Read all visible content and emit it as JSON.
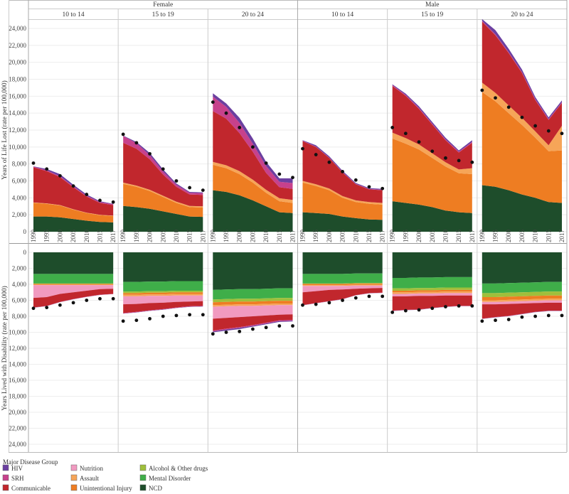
{
  "chart_data": {
    "type": "area",
    "sexes": [
      "Female",
      "Male"
    ],
    "age_groups": [
      "10 to 14",
      "15 to 19",
      "20 to 24"
    ],
    "years": [
      "1990",
      "1995",
      "2000",
      "2005",
      "2010",
      "2015",
      "2017"
    ],
    "top_ylabel": "Years of Life Lost (rate per 100,000)",
    "bottom_ylabel": "Years Lived with Disability (rate per 100,000)",
    "top_ticks": [
      "0",
      "2,000",
      "4,000",
      "6,000",
      "8,000",
      "10,000",
      "12,000",
      "14,000",
      "16,000",
      "18,000",
      "20,000",
      "22,000",
      "24,000"
    ],
    "bottom_ticks": [
      "0",
      "2,000",
      "4,000",
      "6,000",
      "8,000",
      "10,000",
      "12,000",
      "14,000",
      "16,000",
      "18,000",
      "20,000",
      "22,000",
      "24,000"
    ],
    "top_ylim": [
      0,
      25000
    ],
    "bottom_ylim": [
      0,
      25000
    ],
    "legend_title": "Major Disease Group",
    "categories": [
      {
        "key": "ncd",
        "name": "NCD",
        "color": "#1e4d2b"
      },
      {
        "key": "mental",
        "name": "Mental Disorder",
        "color": "#3fae49"
      },
      {
        "key": "alcohol",
        "name": "Alcohol & Other drugs",
        "color": "#9fbf3b"
      },
      {
        "key": "unint",
        "name": "Unintentional Injury",
        "color": "#ee7d22"
      },
      {
        "key": "assault",
        "name": "Assault",
        "color": "#f6a558"
      },
      {
        "key": "nutrition",
        "name": "Nutrition",
        "color": "#f19ac0"
      },
      {
        "key": "comm",
        "name": "Communicable",
        "color": "#c1272d"
      },
      {
        "key": "srh",
        "name": "SRH",
        "color": "#c7418c"
      },
      {
        "key": "hiv",
        "name": "HIV",
        "color": "#6b3fa0"
      }
    ],
    "legend_order": [
      "hiv",
      "srh",
      "comm",
      "nutrition",
      "assault",
      "unint",
      "alcohol",
      "mental",
      "ncd"
    ],
    "panels": [
      {
        "sex": "Female",
        "age": "10 to 14",
        "yll": {
          "ncd": [
            1800,
            1800,
            1700,
            1500,
            1300,
            1150,
            1100
          ],
          "unint": [
            1600,
            1500,
            1400,
            1100,
            900,
            800,
            750
          ],
          "assault": [
            50,
            50,
            50,
            50,
            50,
            50,
            50
          ],
          "comm": [
            4150,
            3800,
            3300,
            2600,
            1900,
            1400,
            1250
          ],
          "srh": [
            100,
            100,
            100,
            100,
            100,
            100,
            100
          ],
          "hiv": [
            20,
            150,
            250,
            200,
            150,
            100,
            50
          ]
        },
        "yll_dots": [
          8100,
          7400,
          6600,
          5400,
          4400,
          3700,
          3500
        ],
        "yld": {
          "ncd": [
            2700,
            2700,
            2700,
            2700,
            2700,
            2700,
            2700
          ],
          "mental": [
            1200,
            1200,
            1200,
            1200,
            1200,
            1200,
            1200
          ],
          "alcohol": [
            50,
            50,
            50,
            50,
            50,
            50,
            50
          ],
          "unint": [
            100,
            100,
            100,
            100,
            100,
            100,
            100
          ],
          "assault": [
            50,
            50,
            50,
            50,
            50,
            50,
            50
          ],
          "nutrition": [
            1600,
            1500,
            1100,
            900,
            700,
            500,
            450
          ],
          "comm": [
            1200,
            1100,
            1000,
            850,
            750,
            700,
            650
          ],
          "srh": [
            20,
            20,
            20,
            20,
            20,
            20,
            20
          ],
          "hiv": [
            10,
            10,
            10,
            10,
            10,
            10,
            10
          ]
        },
        "yld_dots": [
          7000,
          6900,
          6600,
          6300,
          6000,
          5800,
          5800
        ]
      },
      {
        "sex": "Female",
        "age": "15 to 19",
        "yll": {
          "ncd": [
            3050,
            2900,
            2700,
            2400,
            2100,
            1800,
            1750
          ],
          "unint": [
            2600,
            2400,
            2100,
            1700,
            1300,
            1100,
            1100
          ],
          "assault": [
            150,
            150,
            150,
            150,
            150,
            150,
            150
          ],
          "comm": [
            4700,
            4350,
            3600,
            2500,
            1750,
            1350,
            1350
          ],
          "srh": [
            800,
            650,
            500,
            350,
            250,
            200,
            200
          ],
          "hiv": [
            50,
            150,
            250,
            250,
            150,
            100,
            100
          ]
        },
        "yll_dots": [
          11500,
          10500,
          9200,
          7400,
          6000,
          5200,
          4900
        ],
        "yld": {
          "ncd": [
            3700,
            3700,
            3650,
            3650,
            3600,
            3600,
            3600
          ],
          "mental": [
            1200,
            1200,
            1200,
            1200,
            1200,
            1200,
            1200
          ],
          "alcohol": [
            200,
            200,
            200,
            200,
            200,
            200,
            200
          ],
          "unint": [
            200,
            200,
            200,
            200,
            200,
            200,
            200
          ],
          "assault": [
            200,
            200,
            200,
            200,
            200,
            200,
            200
          ],
          "nutrition": [
            1000,
            950,
            900,
            850,
            800,
            750,
            700
          ],
          "comm": [
            1100,
            1000,
            900,
            800,
            700,
            600,
            600
          ],
          "srh": [
            50,
            50,
            50,
            50,
            50,
            50,
            50
          ],
          "hiv": [
            20,
            20,
            20,
            20,
            20,
            20,
            20
          ]
        },
        "yld_dots": [
          8600,
          8500,
          8300,
          8000,
          7900,
          7800,
          7800
        ]
      },
      {
        "sex": "Female",
        "age": "20 to 24",
        "yll": {
          "ncd": [
            4900,
            4700,
            4300,
            3700,
            3000,
            2300,
            2200
          ],
          "unint": [
            3000,
            2800,
            2500,
            2100,
            1600,
            1300,
            1200
          ],
          "assault": [
            350,
            350,
            350,
            350,
            350,
            350,
            350
          ],
          "comm": [
            6000,
            5500,
            4500,
            3300,
            2000,
            1300,
            1300
          ],
          "srh": [
            1700,
            1400,
            1200,
            950,
            800,
            650,
            700
          ],
          "hiv": [
            400,
            400,
            600,
            600,
            500,
            400,
            550
          ]
        },
        "yll_dots": [
          15300,
          14000,
          12300,
          10000,
          8100,
          6800,
          6400
        ],
        "yld": {
          "ncd": [
            4700,
            4650,
            4600,
            4600,
            4550,
            4500,
            4500
          ],
          "mental": [
            1200,
            1200,
            1200,
            1200,
            1200,
            1200,
            1200
          ],
          "alcohol": [
            350,
            350,
            350,
            350,
            350,
            350,
            350
          ],
          "unint": [
            350,
            350,
            350,
            350,
            350,
            350,
            350
          ],
          "assault": [
            200,
            200,
            200,
            200,
            200,
            200,
            200
          ],
          "nutrition": [
            1500,
            1450,
            1400,
            1300,
            1250,
            1200,
            1150
          ],
          "comm": [
            1500,
            1350,
            1250,
            1100,
            900,
            700,
            700
          ],
          "srh": [
            100,
            100,
            100,
            100,
            100,
            100,
            100
          ],
          "hiv": [
            100,
            150,
            150,
            100,
            100,
            100,
            100
          ]
        },
        "yld_dots": [
          10200,
          10000,
          9900,
          9600,
          9400,
          9200,
          9200
        ]
      },
      {
        "sex": "Male",
        "age": "10 to 14",
        "yll": {
          "ncd": [
            2300,
            2200,
            2100,
            1800,
            1600,
            1450,
            1400
          ],
          "unint": [
            3500,
            3200,
            2800,
            2200,
            1900,
            1850,
            1800
          ],
          "assault": [
            200,
            200,
            200,
            200,
            200,
            200,
            200
          ],
          "comm": [
            4700,
            4400,
            3600,
            2800,
            1900,
            1500,
            1500
          ],
          "srh": [
            50,
            50,
            50,
            50,
            50,
            50,
            50
          ],
          "hiv": [
            50,
            150,
            150,
            150,
            100,
            100,
            100
          ]
        },
        "yll_dots": [
          9800,
          9100,
          8200,
          7100,
          6100,
          5300,
          5100
        ],
        "yld": {
          "ncd": [
            2700,
            2700,
            2700,
            2700,
            2650,
            2650,
            2650
          ],
          "mental": [
            1200,
            1200,
            1200,
            1200,
            1200,
            1200,
            1200
          ],
          "alcohol": [
            50,
            50,
            50,
            50,
            50,
            50,
            50
          ],
          "unint": [
            150,
            150,
            150,
            150,
            150,
            150,
            150
          ],
          "assault": [
            100,
            100,
            100,
            100,
            100,
            100,
            100
          ],
          "nutrition": [
            800,
            650,
            500,
            450,
            400,
            350,
            300
          ],
          "comm": [
            1600,
            1500,
            1400,
            1200,
            800,
            600,
            600
          ],
          "srh": [
            20,
            20,
            20,
            20,
            20,
            20,
            20
          ],
          "hiv": [
            10,
            10,
            10,
            10,
            10,
            10,
            10
          ]
        },
        "yld_dots": [
          6600,
          6500,
          6300,
          6000,
          5700,
          5500,
          5500
        ]
      },
      {
        "sex": "Male",
        "age": "15 to 19",
        "yll": {
          "ncd": [
            3600,
            3400,
            3200,
            2900,
            2500,
            2300,
            2200
          ],
          "unint": [
            7400,
            7000,
            6500,
            5800,
            5200,
            4600,
            4600
          ],
          "assault": [
            700,
            650,
            600,
            550,
            500,
            450,
            700
          ],
          "comm": [
            5500,
            5000,
            4200,
            3400,
            2600,
            2000,
            3000
          ],
          "srh": [
            100,
            100,
            100,
            100,
            100,
            100,
            100
          ],
          "hiv": [
            100,
            150,
            200,
            200,
            200,
            150,
            200
          ]
        },
        "yll_dots": [
          12300,
          11600,
          10600,
          9500,
          8700,
          8400,
          8200
        ],
        "yld": {
          "ncd": [
            3200,
            3200,
            3150,
            3150,
            3100,
            3100,
            3100
          ],
          "mental": [
            1300,
            1300,
            1300,
            1300,
            1300,
            1300,
            1300
          ],
          "alcohol": [
            300,
            300,
            300,
            300,
            300,
            300,
            300
          ],
          "unint": [
            200,
            200,
            200,
            200,
            200,
            200,
            200
          ],
          "assault": [
            200,
            200,
            200,
            200,
            200,
            200,
            200
          ],
          "nutrition": [
            300,
            300,
            300,
            300,
            300,
            300,
            300
          ],
          "comm": [
            1800,
            1700,
            1700,
            1500,
            1400,
            1300,
            1300
          ],
          "srh": [
            20,
            20,
            20,
            20,
            20,
            20,
            20
          ],
          "hiv": [
            20,
            20,
            20,
            20,
            20,
            20,
            20
          ]
        },
        "yld_dots": [
          7500,
          7300,
          7200,
          7000,
          6800,
          6700,
          6700
        ]
      },
      {
        "sex": "Male",
        "age": "20 to 24",
        "yll": {
          "ncd": [
            5500,
            5300,
            4900,
            4400,
            4000,
            3500,
            3400
          ],
          "unint": [
            11000,
            10100,
            9100,
            8200,
            7100,
            6000,
            6200
          ],
          "assault": [
            1100,
            1000,
            900,
            850,
            750,
            700,
            2900
          ],
          "comm": [
            7200,
            6800,
            6200,
            5300,
            3700,
            3000,
            2700
          ],
          "srh": [
            100,
            100,
            100,
            100,
            100,
            100,
            100
          ],
          "hiv": [
            200,
            500,
            400,
            300,
            250,
            200,
            200
          ]
        },
        "yll_dots": [
          16700,
          15800,
          14700,
          13500,
          12500,
          11900,
          11600
        ],
        "yld": {
          "ncd": [
            3900,
            3900,
            3850,
            3800,
            3750,
            3700,
            3700
          ],
          "mental": [
            1200,
            1200,
            1200,
            1200,
            1200,
            1200,
            1200
          ],
          "alcohol": [
            500,
            500,
            500,
            500,
            500,
            500,
            500
          ],
          "unint": [
            400,
            400,
            400,
            400,
            400,
            400,
            400
          ],
          "assault": [
            200,
            200,
            200,
            200,
            200,
            200,
            200
          ],
          "nutrition": [
            300,
            300,
            300,
            300,
            300,
            300,
            300
          ],
          "comm": [
            1800,
            1600,
            1500,
            1300,
            1100,
            1000,
            1000
          ],
          "srh": [
            20,
            20,
            20,
            20,
            20,
            20,
            20
          ],
          "hiv": [
            20,
            20,
            20,
            20,
            20,
            20,
            20
          ]
        },
        "yld_dots": [
          8600,
          8500,
          8400,
          8100,
          8000,
          7900,
          7900
        ]
      }
    ]
  }
}
